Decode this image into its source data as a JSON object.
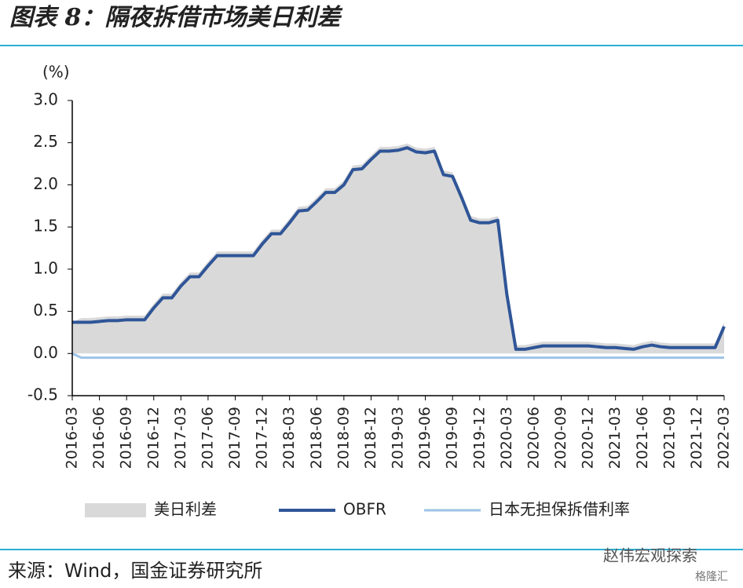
{
  "header": {
    "title": "图表 8：隔夜拆借市场美日利差"
  },
  "chart_data": {
    "type": "line",
    "y_label": "(%)",
    "x": [
      "2016-03",
      "2016-04",
      "2016-05",
      "2016-06",
      "2016-07",
      "2016-08",
      "2016-09",
      "2016-10",
      "2016-11",
      "2016-12",
      "2017-01",
      "2017-02",
      "2017-03",
      "2017-04",
      "2017-05",
      "2017-06",
      "2017-07",
      "2017-08",
      "2017-09",
      "2017-10",
      "2017-11",
      "2017-12",
      "2018-01",
      "2018-02",
      "2018-03",
      "2018-04",
      "2018-05",
      "2018-06",
      "2018-07",
      "2018-08",
      "2018-09",
      "2018-10",
      "2018-11",
      "2018-12",
      "2019-01",
      "2019-02",
      "2019-03",
      "2019-04",
      "2019-05",
      "2019-06",
      "2019-07",
      "2019-08",
      "2019-09",
      "2019-10",
      "2019-11",
      "2019-12",
      "2020-01",
      "2020-02",
      "2020-03",
      "2020-04",
      "2020-05",
      "2020-06",
      "2020-07",
      "2020-08",
      "2020-09",
      "2020-10",
      "2020-11",
      "2020-12",
      "2021-01",
      "2021-02",
      "2021-03",
      "2021-04",
      "2021-05",
      "2021-06",
      "2021-07",
      "2021-08",
      "2021-09",
      "2021-10",
      "2021-11",
      "2021-12",
      "2022-01",
      "2022-02",
      "2022-03"
    ],
    "series": [
      {
        "name": "美日利差",
        "kind": "area",
        "color": "#d9d9d9",
        "values": [
          0.37,
          0.42,
          0.42,
          0.43,
          0.44,
          0.44,
          0.45,
          0.45,
          0.45,
          0.59,
          0.71,
          0.71,
          0.85,
          0.96,
          0.96,
          1.09,
          1.21,
          1.21,
          1.21,
          1.21,
          1.21,
          1.35,
          1.47,
          1.47,
          1.6,
          1.74,
          1.75,
          1.85,
          1.96,
          1.96,
          2.05,
          2.23,
          2.24,
          2.35,
          2.45,
          2.45,
          2.46,
          2.49,
          2.44,
          2.43,
          2.45,
          2.17,
          2.15,
          1.9,
          1.63,
          1.6,
          1.6,
          1.63,
          0.75,
          0.1,
          0.1,
          0.12,
          0.14,
          0.14,
          0.14,
          0.14,
          0.14,
          0.14,
          0.13,
          0.12,
          0.12,
          0.11,
          0.1,
          0.13,
          0.15,
          0.13,
          0.12,
          0.12,
          0.12,
          0.12,
          0.12,
          0.12,
          0.37
        ]
      },
      {
        "name": "OBFR",
        "kind": "line",
        "color": "#2f5597",
        "width": 4,
        "values": [
          0.37,
          0.37,
          0.37,
          0.38,
          0.39,
          0.39,
          0.4,
          0.4,
          0.4,
          0.54,
          0.66,
          0.66,
          0.8,
          0.91,
          0.91,
          1.04,
          1.16,
          1.16,
          1.16,
          1.16,
          1.16,
          1.3,
          1.42,
          1.42,
          1.55,
          1.69,
          1.7,
          1.8,
          1.91,
          1.91,
          2.0,
          2.18,
          2.19,
          2.3,
          2.4,
          2.4,
          2.41,
          2.44,
          2.39,
          2.38,
          2.4,
          2.12,
          2.1,
          1.85,
          1.58,
          1.55,
          1.55,
          1.58,
          0.7,
          0.05,
          0.05,
          0.07,
          0.09,
          0.09,
          0.09,
          0.09,
          0.09,
          0.09,
          0.08,
          0.07,
          0.07,
          0.06,
          0.05,
          0.08,
          0.1,
          0.08,
          0.07,
          0.07,
          0.07,
          0.07,
          0.07,
          0.07,
          0.32
        ]
      },
      {
        "name": "日本无担保拆借利率",
        "kind": "line",
        "color": "#9dc3e6",
        "width": 3,
        "values": [
          0.0,
          -0.05,
          -0.05,
          -0.05,
          -0.05,
          -0.05,
          -0.05,
          -0.05,
          -0.05,
          -0.05,
          -0.05,
          -0.05,
          -0.05,
          -0.05,
          -0.05,
          -0.05,
          -0.05,
          -0.05,
          -0.05,
          -0.05,
          -0.05,
          -0.05,
          -0.05,
          -0.05,
          -0.05,
          -0.05,
          -0.05,
          -0.05,
          -0.05,
          -0.05,
          -0.05,
          -0.05,
          -0.05,
          -0.05,
          -0.05,
          -0.05,
          -0.05,
          -0.05,
          -0.05,
          -0.05,
          -0.05,
          -0.05,
          -0.05,
          -0.05,
          -0.05,
          -0.05,
          -0.05,
          -0.05,
          -0.05,
          -0.05,
          -0.05,
          -0.05,
          -0.05,
          -0.05,
          -0.05,
          -0.05,
          -0.05,
          -0.05,
          -0.05,
          -0.05,
          -0.05,
          -0.05,
          -0.05,
          -0.05,
          -0.05,
          -0.05,
          -0.05,
          -0.05,
          -0.05,
          -0.05,
          -0.05,
          -0.05,
          -0.05
        ]
      }
    ],
    "ylim": [
      -0.5,
      3.0
    ],
    "yticks": [
      {
        "value": 3.0,
        "label": "3.0"
      },
      2.5,
      {
        "value": 2.0,
        "label": "2.0"
      },
      1.5,
      {
        "value": 1.0,
        "label": "1.0"
      },
      0.5,
      {
        "value": 0,
        "label": "0.0"
      },
      -0.5
    ],
    "xticks": [
      "2016-03",
      "2016-06",
      "2016-09",
      "2016-12",
      "2017-03",
      "2017-06",
      "2017-09",
      "2017-12",
      "2018-03",
      "2018-06",
      "2018-09",
      "2018-12",
      "2019-03",
      "2019-06",
      "2019-09",
      "2019-12",
      "2020-03",
      "2020-06",
      "2020-09",
      "2020-12",
      "2021-03",
      "2021-06",
      "2021-09",
      "2021-12",
      "2022-03"
    ]
  },
  "footer": {
    "source": "来源：Wind，国金证券研究所",
    "watermark": "赵伟宏观探索",
    "logo": "格隆汇"
  }
}
